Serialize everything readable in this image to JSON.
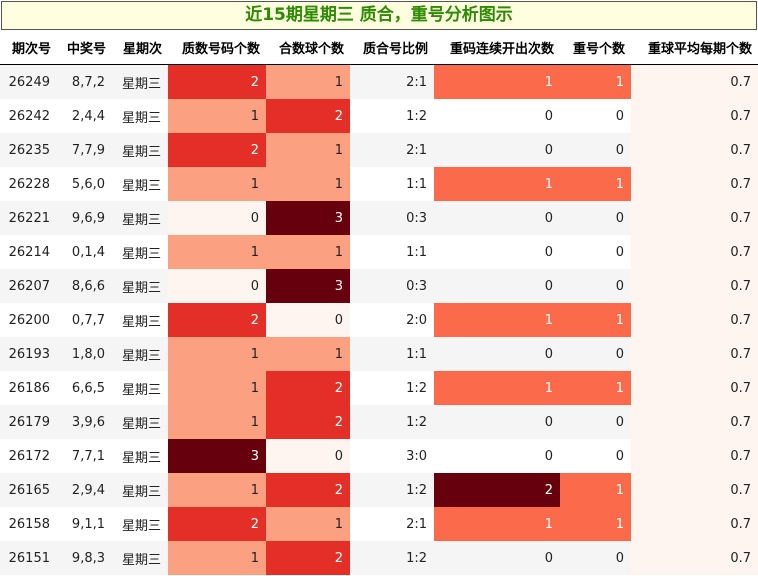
{
  "title": "近15期星期三 质合，重号分析图示",
  "columns": [
    "期次号",
    "中奖号",
    "星期次",
    "质数号码个数",
    "合数球个数",
    "质合号比例",
    "重码连续开出次数",
    "重号个数",
    "重球平均每期个数"
  ],
  "colors": {
    "c0": "#fff5f0",
    "c1": "#fca082",
    "c2": "#e32f27",
    "c3": "#67000d",
    "r1": "#fb6b4b",
    "r2": "#67000d",
    "avg": "#fff5f0",
    "title_text": "#2e8b00",
    "title_bg": "#ffffe0"
  },
  "rows": [
    {
      "issue": "26249",
      "numbers": "8,7,2",
      "weekday": "星期三",
      "prime": 2,
      "composite": 1,
      "ratio": "2:1",
      "repeat_streak": 1,
      "repeat_count": 1,
      "avg": "0.7"
    },
    {
      "issue": "26242",
      "numbers": "2,4,4",
      "weekday": "星期三",
      "prime": 1,
      "composite": 2,
      "ratio": "1:2",
      "repeat_streak": 0,
      "repeat_count": 0,
      "avg": "0.7"
    },
    {
      "issue": "26235",
      "numbers": "7,7,9",
      "weekday": "星期三",
      "prime": 2,
      "composite": 1,
      "ratio": "2:1",
      "repeat_streak": 0,
      "repeat_count": 0,
      "avg": "0.7"
    },
    {
      "issue": "26228",
      "numbers": "5,6,0",
      "weekday": "星期三",
      "prime": 1,
      "composite": 1,
      "ratio": "1:1",
      "repeat_streak": 1,
      "repeat_count": 1,
      "avg": "0.7"
    },
    {
      "issue": "26221",
      "numbers": "9,6,9",
      "weekday": "星期三",
      "prime": 0,
      "composite": 3,
      "ratio": "0:3",
      "repeat_streak": 0,
      "repeat_count": 0,
      "avg": "0.7"
    },
    {
      "issue": "26214",
      "numbers": "0,1,4",
      "weekday": "星期三",
      "prime": 1,
      "composite": 1,
      "ratio": "1:1",
      "repeat_streak": 0,
      "repeat_count": 0,
      "avg": "0.7"
    },
    {
      "issue": "26207",
      "numbers": "8,6,6",
      "weekday": "星期三",
      "prime": 0,
      "composite": 3,
      "ratio": "0:3",
      "repeat_streak": 0,
      "repeat_count": 0,
      "avg": "0.7"
    },
    {
      "issue": "26200",
      "numbers": "0,7,7",
      "weekday": "星期三",
      "prime": 2,
      "composite": 0,
      "ratio": "2:0",
      "repeat_streak": 1,
      "repeat_count": 1,
      "avg": "0.7"
    },
    {
      "issue": "26193",
      "numbers": "1,8,0",
      "weekday": "星期三",
      "prime": 1,
      "composite": 1,
      "ratio": "1:1",
      "repeat_streak": 0,
      "repeat_count": 0,
      "avg": "0.7"
    },
    {
      "issue": "26186",
      "numbers": "6,6,5",
      "weekday": "星期三",
      "prime": 1,
      "composite": 2,
      "ratio": "1:2",
      "repeat_streak": 1,
      "repeat_count": 1,
      "avg": "0.7"
    },
    {
      "issue": "26179",
      "numbers": "3,9,6",
      "weekday": "星期三",
      "prime": 1,
      "composite": 2,
      "ratio": "1:2",
      "repeat_streak": 0,
      "repeat_count": 0,
      "avg": "0.7"
    },
    {
      "issue": "26172",
      "numbers": "7,7,1",
      "weekday": "星期三",
      "prime": 3,
      "composite": 0,
      "ratio": "3:0",
      "repeat_streak": 0,
      "repeat_count": 0,
      "avg": "0.7"
    },
    {
      "issue": "26165",
      "numbers": "2,9,4",
      "weekday": "星期三",
      "prime": 1,
      "composite": 2,
      "ratio": "1:2",
      "repeat_streak": 2,
      "repeat_count": 1,
      "avg": "0.7"
    },
    {
      "issue": "26158",
      "numbers": "9,1,1",
      "weekday": "星期三",
      "prime": 2,
      "composite": 1,
      "ratio": "2:1",
      "repeat_streak": 1,
      "repeat_count": 1,
      "avg": "0.7"
    },
    {
      "issue": "26151",
      "numbers": "9,8,3",
      "weekday": "星期三",
      "prime": 1,
      "composite": 2,
      "ratio": "1:2",
      "repeat_streak": 0,
      "repeat_count": 0,
      "avg": "0.7"
    }
  ],
  "chart_data": {
    "type": "table",
    "title": "近15期星期三 质合，重号分析图示",
    "columns": [
      "期次号",
      "中奖号",
      "星期次",
      "质数号码个数",
      "合数球个数",
      "质合号比例",
      "重码连续开出次数",
      "重号个数",
      "重球平均每期个数"
    ],
    "rows": [
      [
        "26249",
        "8,7,2",
        "星期三",
        2,
        1,
        "2:1",
        1,
        1,
        0.7
      ],
      [
        "26242",
        "2,4,4",
        "星期三",
        1,
        2,
        "1:2",
        0,
        0,
        0.7
      ],
      [
        "26235",
        "7,7,9",
        "星期三",
        2,
        1,
        "2:1",
        0,
        0,
        0.7
      ],
      [
        "26228",
        "5,6,0",
        "星期三",
        1,
        1,
        "1:1",
        1,
        1,
        0.7
      ],
      [
        "26221",
        "9,6,9",
        "星期三",
        0,
        3,
        "0:3",
        0,
        0,
        0.7
      ],
      [
        "26214",
        "0,1,4",
        "星期三",
        1,
        1,
        "1:1",
        0,
        0,
        0.7
      ],
      [
        "26207",
        "8,6,6",
        "星期三",
        0,
        3,
        "0:3",
        0,
        0,
        0.7
      ],
      [
        "26200",
        "0,7,7",
        "星期三",
        2,
        0,
        "2:0",
        1,
        1,
        0.7
      ],
      [
        "26193",
        "1,8,0",
        "星期三",
        1,
        1,
        "1:1",
        0,
        0,
        0.7
      ],
      [
        "26186",
        "6,6,5",
        "星期三",
        1,
        2,
        "1:2",
        1,
        1,
        0.7
      ],
      [
        "26179",
        "3,9,6",
        "星期三",
        1,
        2,
        "1:2",
        0,
        0,
        0.7
      ],
      [
        "26172",
        "7,7,1",
        "星期三",
        3,
        0,
        "3:0",
        0,
        0,
        0.7
      ],
      [
        "26165",
        "2,9,4",
        "星期三",
        1,
        2,
        "1:2",
        2,
        1,
        0.7
      ],
      [
        "26158",
        "9,1,1",
        "星期三",
        2,
        1,
        "2:1",
        1,
        1,
        0.7
      ],
      [
        "26151",
        "9,8,3",
        "星期三",
        1,
        2,
        "1:2",
        0,
        0,
        0.7
      ]
    ]
  }
}
